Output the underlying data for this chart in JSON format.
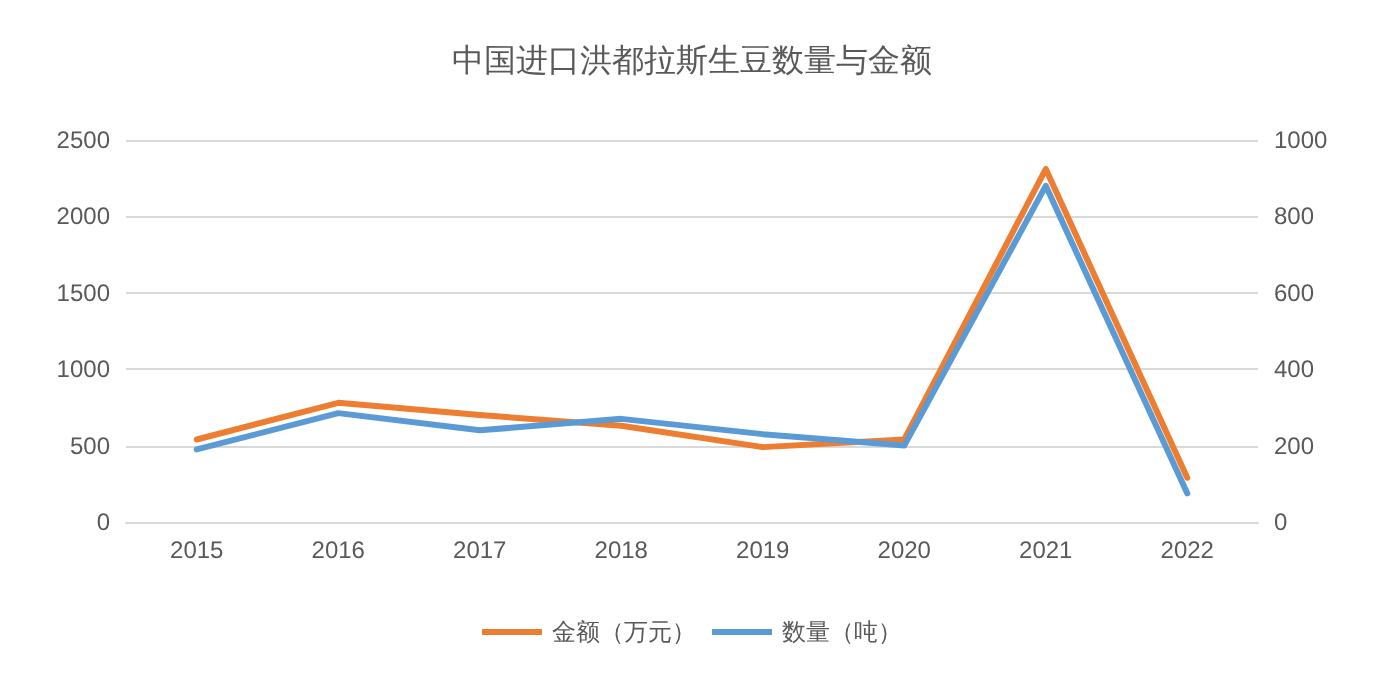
{
  "chart_data": {
    "type": "line",
    "title": "中国进口洪都拉斯生豆数量与金额",
    "categories": [
      "2015",
      "2016",
      "2017",
      "2018",
      "2019",
      "2020",
      "2021",
      "2022"
    ],
    "series": [
      {
        "name": "金额（万元）",
        "color": "#ed7d31",
        "values": [
          540,
          780,
          700,
          630,
          490,
          540,
          2310,
          290
        ]
      },
      {
        "name": "数量（吨）",
        "color": "#5b9bd5",
        "axis": "y2",
        "values": [
          190,
          285,
          240,
          270,
          230,
          200,
          880,
          75
        ]
      }
    ],
    "ylim": [
      0,
      2500
    ],
    "yticks": [
      0,
      500,
      1000,
      1500,
      2000,
      2500
    ],
    "y2lim": [
      0,
      1000
    ],
    "y2ticks": [
      0,
      200,
      400,
      600,
      800,
      1000
    ],
    "grid": "y",
    "legend": "bottom",
    "marker": "none",
    "line_style": "solid"
  }
}
